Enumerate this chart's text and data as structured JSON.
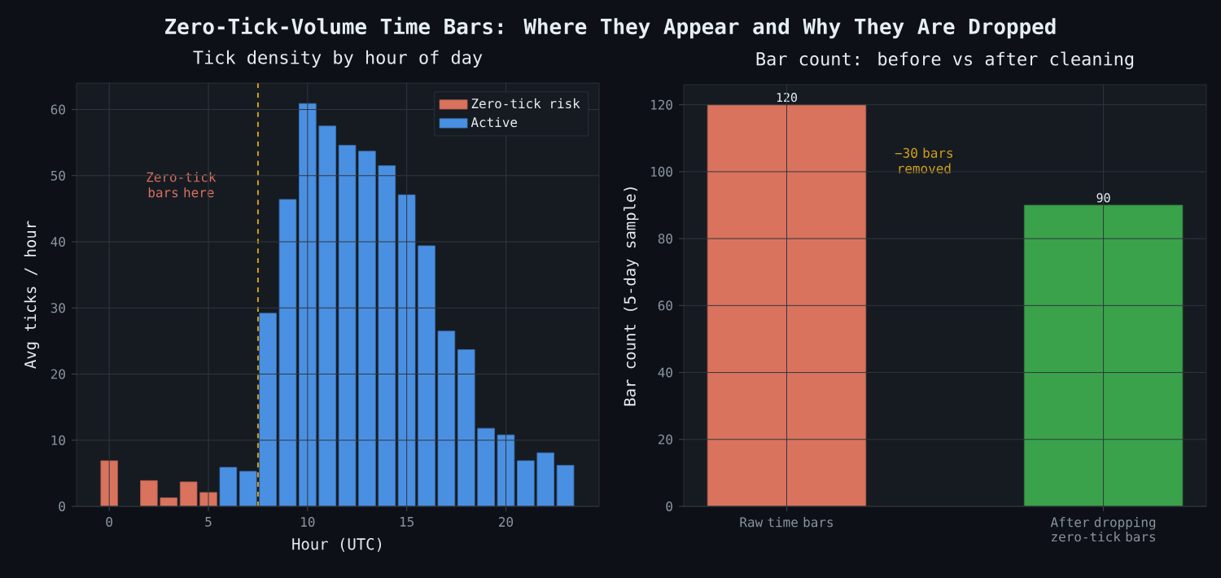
{
  "chart_data": [
    {
      "type": "other",
      "title": "Zero-Tick-Volume Time Bars: Where They Appear and Why They Are Dropped"
    },
    {
      "type": "bar",
      "title": "Tick density by hour of day",
      "xlabel": "Hour (UTC)",
      "ylabel": "Avg ticks / hour",
      "series": [
        {
          "name": "Zero-tick risk",
          "color": "#d9735e",
          "x": [
            0,
            2,
            3,
            4,
            5
          ],
          "values": [
            6.9,
            3.9,
            1.3,
            3.7,
            2.1
          ]
        },
        {
          "name": "Active",
          "color": "#4a90e2",
          "x": [
            6,
            7,
            8,
            9,
            10,
            11,
            12,
            13,
            14,
            15,
            16,
            17,
            18,
            19,
            20,
            21,
            22,
            23
          ],
          "values": [
            5.9,
            5.3,
            29.2,
            46.4,
            60.9,
            57.5,
            54.6,
            53.7,
            51.5,
            47.1,
            39.4,
            26.5,
            23.7,
            11.8,
            10.8,
            6.9,
            8.1,
            6.2
          ]
        }
      ],
      "xlim": [
        -1.65,
        24.7
      ],
      "xticks": [
        0,
        5,
        10,
        15,
        20
      ],
      "ylim": [
        0,
        64
      ],
      "yticks": [
        0,
        10,
        20,
        30,
        40,
        50,
        60
      ],
      "ref_lines": [
        {
          "axis": "x",
          "value": 7.5,
          "color": "#d4a017",
          "line_style": "dashed"
        }
      ],
      "annotations": [
        "Zero-tick bars here"
      ],
      "grid": true,
      "legend": "top right"
    },
    {
      "type": "bar",
      "title": "Bar count: before vs after cleaning",
      "ylabel": "Bar count (5-day sample)",
      "categories": [
        "Raw time bars",
        "After dropping zero-tick bars"
      ],
      "values": [
        120,
        90
      ],
      "colors": [
        "#d9735e",
        "#3aa24a"
      ],
      "ylim": [
        0,
        126
      ],
      "yticks": [
        0,
        20,
        40,
        60,
        80,
        100,
        120
      ],
      "data_labels": true,
      "grid": true,
      "annotations": [
        "−30 bars removed"
      ]
    }
  ]
}
